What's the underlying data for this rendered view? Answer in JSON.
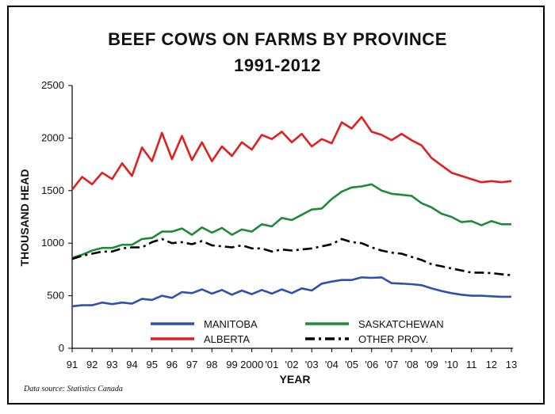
{
  "title_line1": "BEEF COWS ON FARMS BY PROVINCE",
  "title_line2": "1991-2012",
  "source": "Data source: Statistics Canada",
  "chart_data": {
    "type": "line",
    "xlabel": "YEAR",
    "ylabel": "THOUSAND HEAD",
    "ylim": [
      0,
      2500
    ],
    "yticks": [
      0,
      500,
      1000,
      1500,
      2000,
      2500
    ],
    "x_tick_labels": [
      "91",
      "92",
      "93",
      "94",
      "95",
      "96",
      "97",
      "98",
      "99",
      "2000",
      "'01",
      "'02",
      "'03",
      "'04",
      "'05",
      "'06",
      "'07",
      "'08",
      "'09",
      "'10",
      "11",
      "12",
      "13"
    ],
    "x_tick_positions": [
      1991,
      1992,
      1993,
      1994,
      1995,
      1996,
      1997,
      1998,
      1999,
      2000,
      2001,
      2002,
      2003,
      2004,
      2005,
      2006,
      2007,
      2008,
      2009,
      2010,
      2011,
      2012,
      2013
    ],
    "xlim": [
      1991,
      2013
    ],
    "grid": false,
    "legend_position": "bottom-inside",
    "x": [
      1991,
      1991.5,
      1992,
      1992.5,
      1993,
      1993.5,
      1994,
      1994.5,
      1995,
      1995.5,
      1996,
      1996.5,
      1997,
      1997.5,
      1998,
      1998.5,
      1999,
      1999.5,
      2000,
      2000.5,
      2001,
      2001.5,
      2002,
      2002.5,
      2003,
      2003.5,
      2004,
      2004.5,
      2005,
      2005.5,
      2006,
      2006.5,
      2007,
      2007.5,
      2008,
      2008.5,
      2009,
      2009.5,
      2010,
      2010.5,
      2011,
      2011.5,
      2012,
      2012.5,
      2013
    ],
    "series": [
      {
        "name": "MANITOBA",
        "color": "#3050b0",
        "dash": "solid",
        "values": [
          400,
          410,
          410,
          435,
          420,
          435,
          425,
          470,
          460,
          500,
          480,
          535,
          525,
          560,
          520,
          555,
          510,
          550,
          515,
          555,
          520,
          560,
          525,
          570,
          550,
          615,
          635,
          650,
          650,
          675,
          670,
          675,
          620,
          615,
          610,
          600,
          570,
          545,
          525,
          510,
          500,
          500,
          495,
          490,
          490
        ]
      },
      {
        "name": "SASKATCHEWAN",
        "color": "#1e8a3a",
        "dash": "solid",
        "values": [
          860,
          890,
          930,
          955,
          955,
          985,
          985,
          1040,
          1050,
          1110,
          1110,
          1140,
          1080,
          1150,
          1100,
          1145,
          1080,
          1130,
          1110,
          1180,
          1160,
          1240,
          1220,
          1270,
          1320,
          1330,
          1420,
          1490,
          1530,
          1540,
          1560,
          1500,
          1470,
          1460,
          1450,
          1380,
          1340,
          1280,
          1250,
          1200,
          1210,
          1170,
          1210,
          1180,
          1180
        ]
      },
      {
        "name": "ALBERTA",
        "color": "#e02020",
        "dash": "solid",
        "values": [
          1510,
          1630,
          1560,
          1670,
          1610,
          1760,
          1640,
          1910,
          1780,
          2050,
          1800,
          2020,
          1790,
          1960,
          1780,
          1920,
          1830,
          1960,
          1890,
          2030,
          1990,
          2060,
          1960,
          2040,
          1920,
          1990,
          1950,
          2150,
          2090,
          2200,
          2060,
          2030,
          1980,
          2040,
          1980,
          1930,
          1810,
          1740,
          1670,
          1640,
          1610,
          1580,
          1590,
          1580,
          1590
        ]
      },
      {
        "name": "OTHER PROV.",
        "color": "#000000",
        "dash": "dashdot",
        "values": [
          850,
          880,
          900,
          920,
          920,
          950,
          960,
          960,
          1010,
          1040,
          1000,
          1010,
          990,
          1020,
          980,
          970,
          960,
          980,
          950,
          950,
          920,
          940,
          930,
          940,
          950,
          970,
          990,
          1040,
          1010,
          1000,
          960,
          930,
          910,
          900,
          870,
          840,
          800,
          780,
          760,
          740,
          720,
          720,
          715,
          705,
          695
        ]
      }
    ]
  }
}
